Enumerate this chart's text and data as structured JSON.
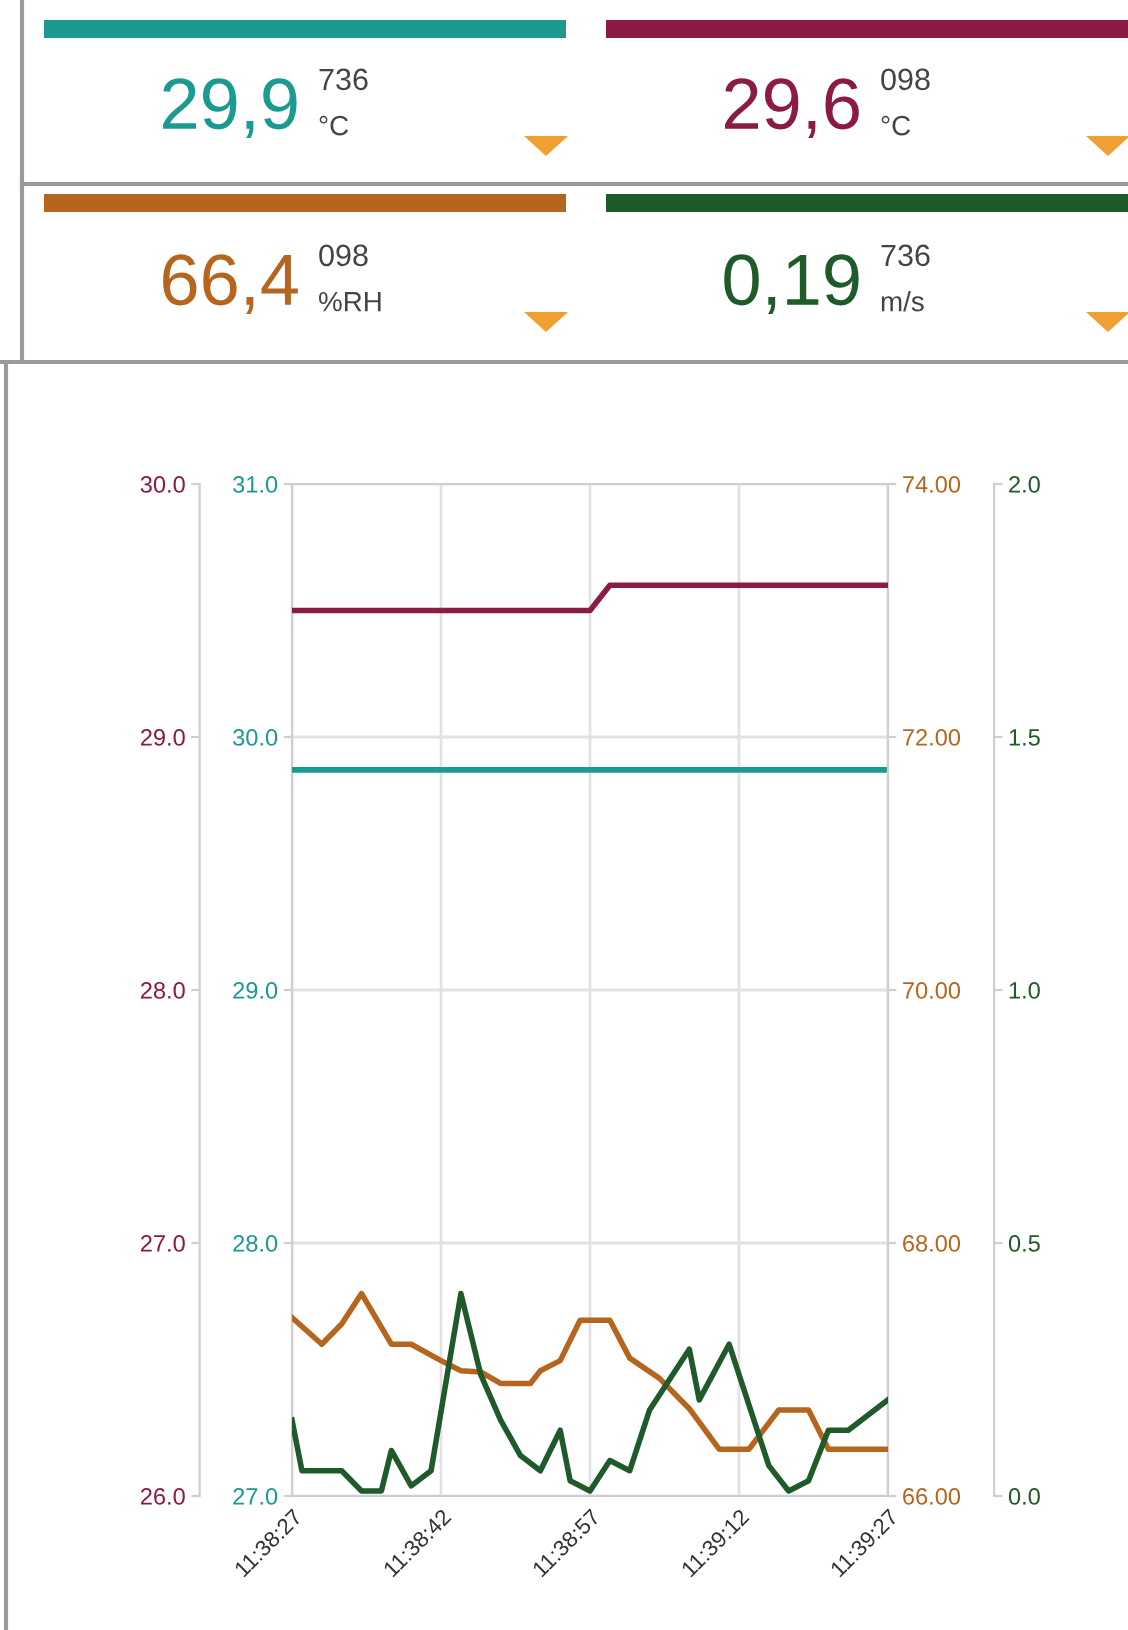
{
  "chart_data": [
    {
      "type": "line",
      "annotations": [
        "29,9",
        "736",
        "°C",
        "29,6",
        "098",
        "°C",
        "66,4",
        "098",
        "%RH",
        "0,19",
        "736",
        "m/s"
      ],
      "xlim": [
        11.640833,
        11.6575
      ],
      "xticks": [
        {
          "value": 11.640833,
          "label": "11:38:27"
        },
        {
          "value": 11.645,
          "label": "11:38:42"
        },
        {
          "value": 11.649167,
          "label": "11:38:57"
        },
        {
          "value": 11.653333,
          "label": "11:39:12"
        },
        {
          "value": 11.6575,
          "label": "11:39:27"
        }
      ],
      "ylim": [
        27,
        31
      ],
      "yticks": [
        {
          "value": 27,
          "label": "27.0"
        },
        {
          "value": 28,
          "label": "28.0"
        },
        {
          "value": 29,
          "label": "29.0"
        },
        {
          "value": 30,
          "label": "30.0"
        },
        {
          "value": 31,
          "label": "31.0"
        }
      ],
      "y2lim": [
        66,
        74
      ],
      "y2ticks": [
        {
          "value": 66,
          "label": "66.00"
        },
        {
          "value": 68,
          "label": "68.00"
        },
        {
          "value": 70,
          "label": "70.00"
        },
        {
          "value": 72,
          "label": "72.00"
        },
        {
          "value": 74,
          "label": "74.00"
        }
      ],
      "grid": true,
      "series": [
        {
          "color": "#1a9a90",
          "x": [
            11.640833,
            11.6575
          ],
          "values": [
            29.87,
            29.87
          ]
        },
        {
          "color": "#b5651d",
          "axis": "y2",
          "x": [
            11.640833,
            11.641667,
            11.642222,
            11.642778,
            11.643611,
            11.644167,
            11.645,
            11.645556,
            11.646111,
            11.646667,
            11.6475,
            11.647778,
            11.648333,
            11.648889,
            11.649722,
            11.650278,
            11.651111,
            11.651944,
            11.652778,
            11.653611,
            11.654444,
            11.655278,
            11.655833,
            11.6575
          ],
          "values": [
            67.41,
            67.2,
            67.36,
            67.6,
            67.2,
            67.2,
            67.07,
            66.99,
            66.98,
            66.89,
            66.89,
            66.99,
            67.07,
            67.39,
            67.39,
            67.09,
            66.93,
            66.69,
            66.37,
            66.37,
            66.68,
            66.68,
            66.37,
            66.37
          ]
        }
      ]
    },
    {
      "type": "line",
      "tick_labels": "y",
      "xlim": [
        11.640833,
        11.6575
      ],
      "ylim": [
        26,
        30
      ],
      "yticks": [
        {
          "value": 26,
          "label": "26.0"
        },
        {
          "value": 27,
          "label": "27.0"
        },
        {
          "value": 28,
          "label": "28.0"
        },
        {
          "value": 29,
          "label": "29.0"
        },
        {
          "value": 30,
          "label": "30.0"
        }
      ],
      "y2lim": [
        0,
        2
      ],
      "y2ticks": [
        {
          "value": 0,
          "label": "0.0"
        },
        {
          "value": 0.5,
          "label": "0.5"
        },
        {
          "value": 1,
          "label": "1.0"
        },
        {
          "value": 1.5,
          "label": "1.5"
        },
        {
          "value": 2,
          "label": "2.0"
        }
      ],
      "series": [
        {
          "color": "#8b1a44",
          "x": [
            11.640833,
            11.649167,
            11.649722,
            11.6575
          ],
          "values": [
            29.5,
            29.5,
            29.6,
            29.6
          ]
        },
        {
          "color": "#1f5a2a",
          "axis": "y2",
          "x": [
            11.640833,
            11.641111,
            11.641667,
            11.642222,
            11.642778,
            11.643333,
            11.643611,
            11.644167,
            11.644722,
            11.645556,
            11.646111,
            11.646667,
            11.647222,
            11.647778,
            11.648333,
            11.648611,
            11.649167,
            11.649722,
            11.650278,
            11.650833,
            11.651944,
            11.652222,
            11.653056,
            11.653611,
            11.654167,
            11.654722,
            11.655278,
            11.655833,
            11.656389,
            11.6575
          ],
          "values": [
            0.15,
            0.05,
            0.05,
            0.05,
            0.01,
            0.01,
            0.09,
            0.02,
            0.05,
            0.4,
            0.24,
            0.15,
            0.08,
            0.05,
            0.13,
            0.03,
            0.01,
            0.07,
            0.05,
            0.17,
            0.29,
            0.19,
            0.3,
            0.18,
            0.06,
            0.01,
            0.03,
            0.13,
            0.13,
            0.19
          ]
        }
      ]
    }
  ]
}
